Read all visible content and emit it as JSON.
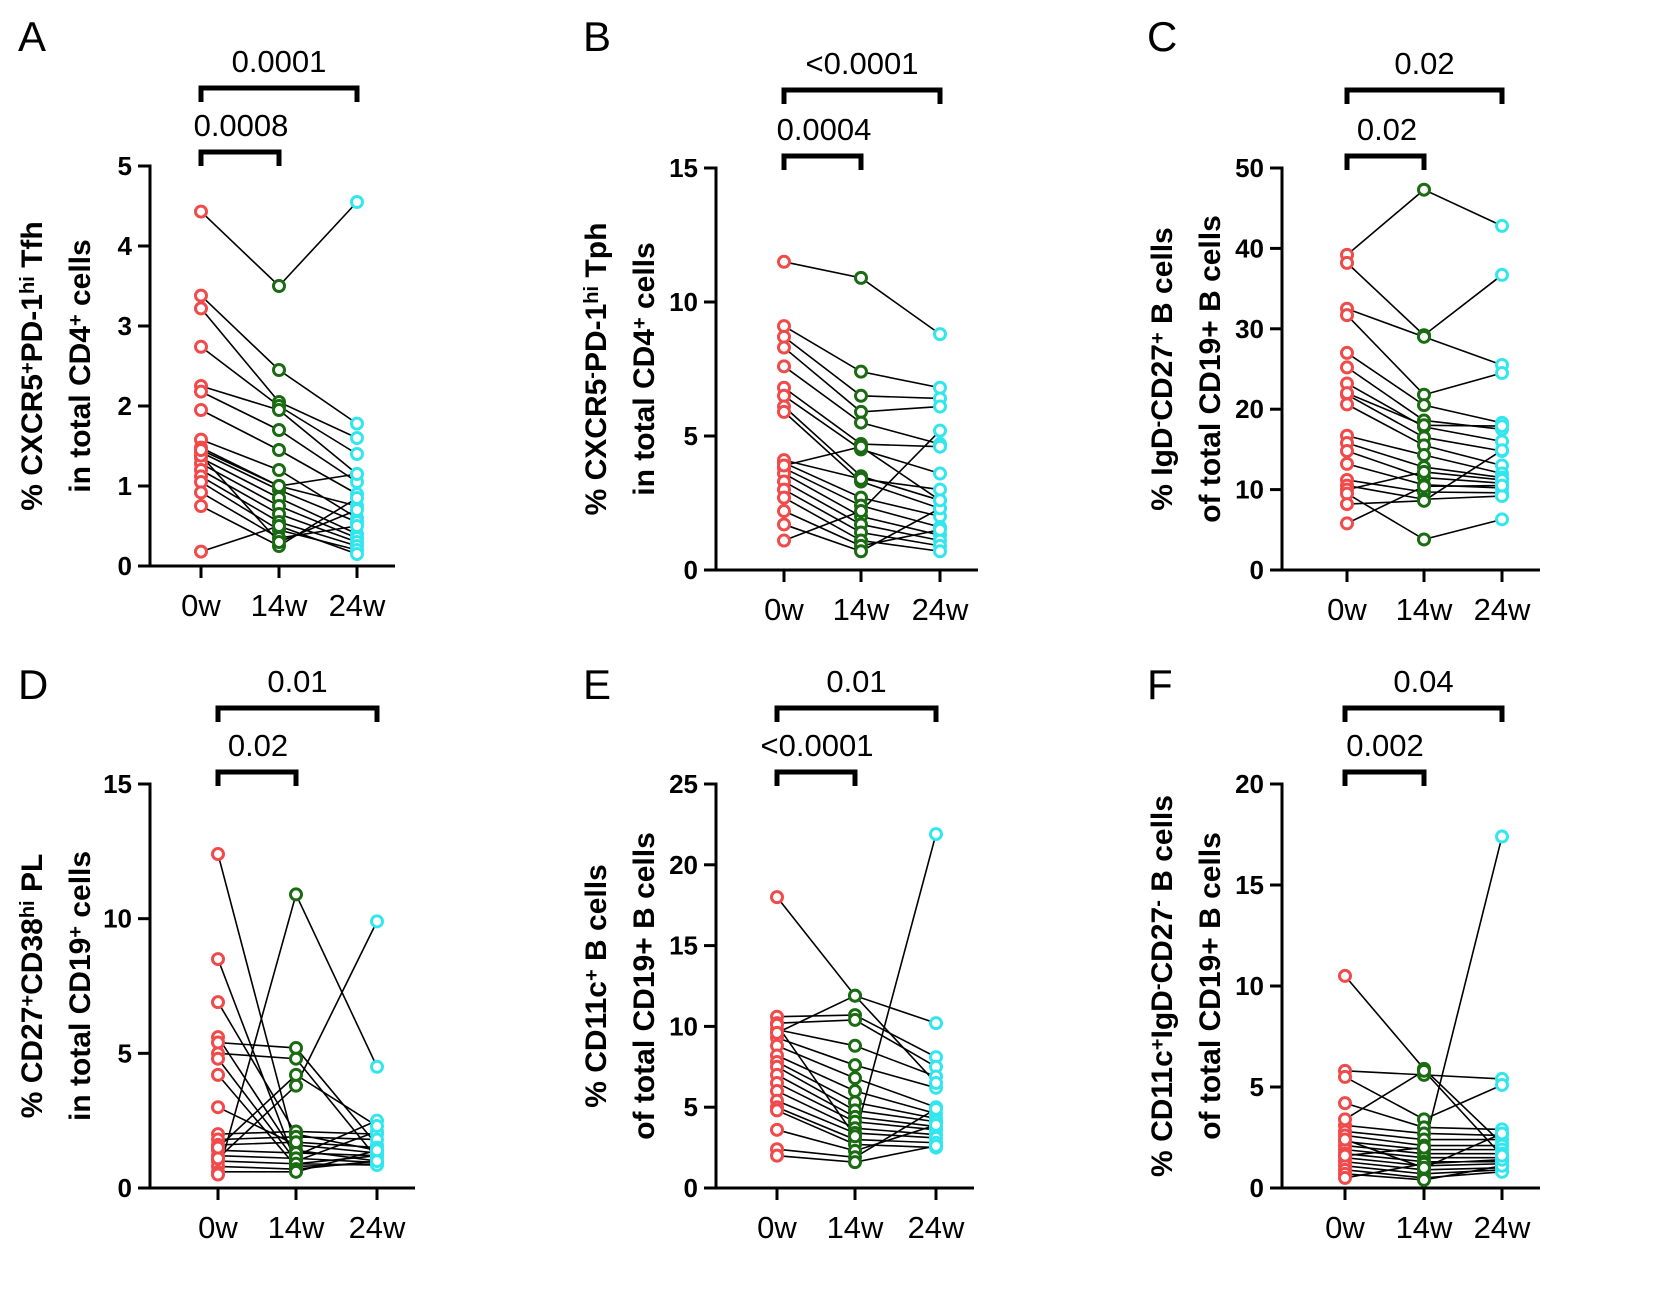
{
  "colors": {
    "w0": "#f04a4a",
    "w14": "#1a6b12",
    "w24": "#33e6ee",
    "line": "#000000"
  },
  "chart_data": [
    {
      "panel": "A",
      "type": "scatter",
      "categories": [
        "0w",
        "14w",
        "24w"
      ],
      "ylim": [
        0,
        5
      ],
      "yticks": [
        0,
        1,
        2,
        3,
        4,
        5
      ],
      "ylabel_lines": [
        [
          {
            "t": "% CXCR5"
          },
          {
            "t": "+",
            "sup": true
          },
          {
            "t": "PD-1"
          },
          {
            "t": "hi",
            "sup": true
          },
          {
            "t": " Tfh"
          }
        ],
        [
          {
            "t": "in total CD4"
          },
          {
            "t": "+",
            "sup": true
          },
          {
            "t": " cells"
          }
        ]
      ],
      "pvalues": [
        {
          "label": "0.0008",
          "from": 0,
          "to": 1,
          "level": 0
        },
        {
          "label": "0.0001",
          "from": 0,
          "to": 2,
          "level": 1
        }
      ],
      "pairs": [
        [
          4.43,
          3.5,
          4.55
        ],
        [
          3.38,
          2.45,
          1.78
        ],
        [
          3.22,
          2.05,
          1.6
        ],
        [
          2.74,
          2.0,
          1.4
        ],
        [
          2.25,
          1.95,
          1.15
        ],
        [
          2.18,
          1.7,
          1.05
        ],
        [
          1.95,
          1.45,
          0.9
        ],
        [
          1.58,
          1.2,
          0.6
        ],
        [
          1.48,
          1.0,
          0.75
        ],
        [
          1.42,
          0.95,
          0.55
        ],
        [
          1.35,
          0.85,
          0.4
        ],
        [
          1.28,
          0.75,
          0.35
        ],
        [
          1.2,
          0.65,
          0.3
        ],
        [
          1.12,
          0.55,
          0.25
        ],
        [
          1.05,
          0.45,
          0.2
        ],
        [
          0.92,
          0.35,
          0.5
        ],
        [
          0.75,
          0.25,
          0.85
        ],
        [
          0.18,
          0.5,
          0.15
        ],
        [
          1.38,
          0.3,
          0.7
        ],
        [
          1.45,
          1.0,
          1.15
        ]
      ]
    },
    {
      "panel": "B",
      "type": "scatter",
      "categories": [
        "0w",
        "14w",
        "24w"
      ],
      "ylim": [
        0,
        15
      ],
      "yticks": [
        0,
        5,
        10,
        15
      ],
      "ylabel_lines": [
        [
          {
            "t": "% CXCR5"
          },
          {
            "t": "-",
            "sup": true
          },
          {
            "t": "PD-1"
          },
          {
            "t": "hi",
            "sup": true
          },
          {
            "t": " Tph"
          }
        ],
        [
          {
            "t": "in total CD4"
          },
          {
            "t": "+",
            "sup": true
          },
          {
            "t": " cells"
          }
        ]
      ],
      "pvalues": [
        {
          "label": "0.0004",
          "from": 0,
          "to": 1,
          "level": 0
        },
        {
          "label": "<0.0001",
          "from": 0,
          "to": 2,
          "level": 1
        }
      ],
      "pairs": [
        [
          11.5,
          10.9,
          8.8
        ],
        [
          9.1,
          7.4,
          6.8
        ],
        [
          8.7,
          6.5,
          6.4
        ],
        [
          8.3,
          5.9,
          6.1
        ],
        [
          7.6,
          5.5,
          4.7
        ],
        [
          6.8,
          4.7,
          4.6
        ],
        [
          6.5,
          4.5,
          3.6
        ],
        [
          6.1,
          3.5,
          2.6
        ],
        [
          5.9,
          3.3,
          2.3
        ],
        [
          4.0,
          2.7,
          2.0
        ],
        [
          3.8,
          2.4,
          1.6
        ],
        [
          3.6,
          2.0,
          1.3
        ],
        [
          3.3,
          1.7,
          1.1
        ],
        [
          3.0,
          1.4,
          0.9
        ],
        [
          2.7,
          1.1,
          0.7
        ],
        [
          2.2,
          0.9,
          1.5
        ],
        [
          1.7,
          0.7,
          2.3
        ],
        [
          1.1,
          2.2,
          5.2
        ],
        [
          4.1,
          3.4,
          3.0
        ],
        [
          3.9,
          4.6,
          2.6
        ]
      ]
    },
    {
      "panel": "C",
      "type": "scatter",
      "categories": [
        "0w",
        "14w",
        "24w"
      ],
      "ylim": [
        0,
        50
      ],
      "yticks": [
        0,
        10,
        20,
        30,
        40,
        50
      ],
      "ylabel_lines": [
        [
          {
            "t": "% IgD"
          },
          {
            "t": "-",
            "sup": true
          },
          {
            "t": "CD27"
          },
          {
            "t": "+",
            "sup": true
          },
          {
            "t": " B cells"
          }
        ],
        [
          {
            "t": "of total CD19+ B cells"
          }
        ]
      ],
      "pvalues": [
        {
          "label": "0.02",
          "from": 0,
          "to": 1,
          "level": 0
        },
        {
          "label": "0.02",
          "from": 0,
          "to": 2,
          "level": 1
        }
      ],
      "pairs": [
        [
          39.2,
          47.3,
          42.8
        ],
        [
          38.2,
          29.2,
          36.7
        ],
        [
          32.5,
          29.0,
          25.5
        ],
        [
          31.7,
          21.8,
          24.5
        ],
        [
          27.0,
          20.5,
          18.3
        ],
        [
          25.2,
          18.6,
          17.5
        ],
        [
          23.2,
          17.8,
          16.0
        ],
        [
          21.8,
          16.5,
          14.8
        ],
        [
          20.6,
          15.5,
          13.0
        ],
        [
          16.7,
          14.3,
          12.0
        ],
        [
          15.8,
          12.8,
          11.5
        ],
        [
          14.8,
          11.5,
          10.8
        ],
        [
          13.2,
          10.6,
          10.2
        ],
        [
          11.2,
          9.7,
          9.6
        ],
        [
          10.5,
          8.8,
          9.2
        ],
        [
          10.0,
          12.2,
          11.2
        ],
        [
          9.5,
          3.8,
          6.3
        ],
        [
          8.2,
          8.6,
          14.9
        ],
        [
          5.8,
          10.4,
          10.5
        ],
        [
          22.0,
          18.0,
          17.9
        ]
      ]
    },
    {
      "panel": "D",
      "type": "scatter",
      "categories": [
        "0w",
        "14w",
        "24w"
      ],
      "ylim": [
        0,
        15
      ],
      "yticks": [
        0,
        5,
        10,
        15
      ],
      "ylabel_lines": [
        [
          {
            "t": "% CD27"
          },
          {
            "t": "+",
            "sup": true
          },
          {
            "t": "CD38"
          },
          {
            "t": "hi",
            "sup": true
          },
          {
            "t": " PL"
          }
        ],
        [
          {
            "t": "in total CD19"
          },
          {
            "t": "+",
            "sup": true
          },
          {
            "t": " cells"
          }
        ]
      ],
      "pvalues": [
        {
          "label": "0.02",
          "from": 0,
          "to": 1,
          "level": 0
        },
        {
          "label": "0.01",
          "from": 0,
          "to": 2,
          "level": 1
        }
      ],
      "pairs": [
        [
          12.4,
          1.4,
          1.0
        ],
        [
          8.5,
          0.9,
          1.2
        ],
        [
          6.9,
          2.0,
          1.4
        ],
        [
          5.6,
          1.2,
          2.5
        ],
        [
          5.4,
          5.2,
          1.6
        ],
        [
          5.0,
          4.8,
          1.1
        ],
        [
          4.8,
          1.0,
          2.1
        ],
        [
          4.2,
          0.8,
          0.9
        ],
        [
          3.0,
          1.6,
          1.3
        ],
        [
          2.0,
          2.1,
          2.0
        ],
        [
          1.8,
          1.9,
          1.8
        ],
        [
          1.6,
          1.7,
          1.5
        ],
        [
          1.4,
          1.3,
          1.2
        ],
        [
          1.2,
          1.1,
          0.95
        ],
        [
          1.0,
          0.9,
          0.85
        ],
        [
          0.8,
          0.7,
          1.0
        ],
        [
          0.6,
          0.6,
          1.4
        ],
        [
          0.5,
          10.9,
          4.5
        ],
        [
          1.1,
          3.8,
          9.9
        ],
        [
          1.5,
          4.2,
          2.3
        ]
      ]
    },
    {
      "panel": "E",
      "type": "scatter",
      "categories": [
        "0w",
        "14w",
        "24w"
      ],
      "ylim": [
        0,
        25
      ],
      "yticks": [
        0,
        5,
        10,
        15,
        20,
        25
      ],
      "ylabel_lines": [
        [
          {
            "t": "% CD11c"
          },
          {
            "t": "+",
            "sup": true
          },
          {
            "t": " B cells"
          }
        ],
        [
          {
            "t": "of total CD19+ B cells"
          }
        ]
      ],
      "pvalues": [
        {
          "label": "<0.0001",
          "from": 0,
          "to": 1,
          "level": 0
        },
        {
          "label": "0.01",
          "from": 0,
          "to": 2,
          "level": 1
        }
      ],
      "pairs": [
        [
          18.0,
          11.9,
          10.2
        ],
        [
          10.6,
          10.7,
          8.1
        ],
        [
          10.2,
          10.4,
          7.5
        ],
        [
          9.8,
          8.8,
          6.9
        ],
        [
          9.3,
          7.6,
          6.2
        ],
        [
          8.8,
          6.8,
          5.0
        ],
        [
          8.2,
          6.0,
          4.6
        ],
        [
          7.8,
          5.3,
          4.3
        ],
        [
          7.5,
          4.8,
          4.1
        ],
        [
          7.0,
          4.4,
          3.8
        ],
        [
          6.5,
          4.1,
          3.6
        ],
        [
          6.0,
          3.7,
          3.3
        ],
        [
          5.4,
          3.4,
          3.1
        ],
        [
          5.0,
          3.0,
          2.8
        ],
        [
          4.8,
          2.7,
          2.5
        ],
        [
          3.6,
          2.3,
          3.9
        ],
        [
          2.4,
          1.9,
          4.9
        ],
        [
          2.0,
          1.6,
          2.6
        ],
        [
          10.1,
          3.2,
          21.9
        ],
        [
          9.6,
          11.9,
          6.5
        ]
      ]
    },
    {
      "panel": "F",
      "type": "scatter",
      "categories": [
        "0w",
        "14w",
        "24w"
      ],
      "ylim": [
        0,
        20
      ],
      "yticks": [
        0,
        5,
        10,
        15,
        20
      ],
      "ylabel_lines": [
        [
          {
            "t": "% CD11c"
          },
          {
            "t": "+",
            "sup": true
          },
          {
            "t": "IgD"
          },
          {
            "t": "-",
            "sup": true
          },
          {
            "t": "CD27"
          },
          {
            "t": "-",
            "sup": true
          },
          {
            "t": " B cells"
          }
        ],
        [
          {
            "t": "of total CD19+ B cells"
          }
        ]
      ],
      "pvalues": [
        {
          "label": "0.002",
          "from": 0,
          "to": 1,
          "level": 0
        },
        {
          "label": "0.04",
          "from": 0,
          "to": 2,
          "level": 1
        }
      ],
      "pairs": [
        [
          10.5,
          5.9,
          2.2
        ],
        [
          5.8,
          5.6,
          5.4
        ],
        [
          5.5,
          3.4,
          5.1
        ],
        [
          4.2,
          3.0,
          2.9
        ],
        [
          3.1,
          2.7,
          2.6
        ],
        [
          2.8,
          2.4,
          2.4
        ],
        [
          2.6,
          2.1,
          2.1
        ],
        [
          2.3,
          1.9,
          1.9
        ],
        [
          2.1,
          1.7,
          1.7
        ],
        [
          1.9,
          1.5,
          1.5
        ],
        [
          1.7,
          1.3,
          1.3
        ],
        [
          1.5,
          1.1,
          1.2
        ],
        [
          1.3,
          0.9,
          1.0
        ],
        [
          1.1,
          0.7,
          0.9
        ],
        [
          0.9,
          0.5,
          0.8
        ],
        [
          0.7,
          0.4,
          1.1
        ],
        [
          0.5,
          1.2,
          1.4
        ],
        [
          1.6,
          2.0,
          17.4
        ],
        [
          2.4,
          1.0,
          2.7
        ],
        [
          3.4,
          5.8,
          1.6
        ]
      ]
    }
  ]
}
